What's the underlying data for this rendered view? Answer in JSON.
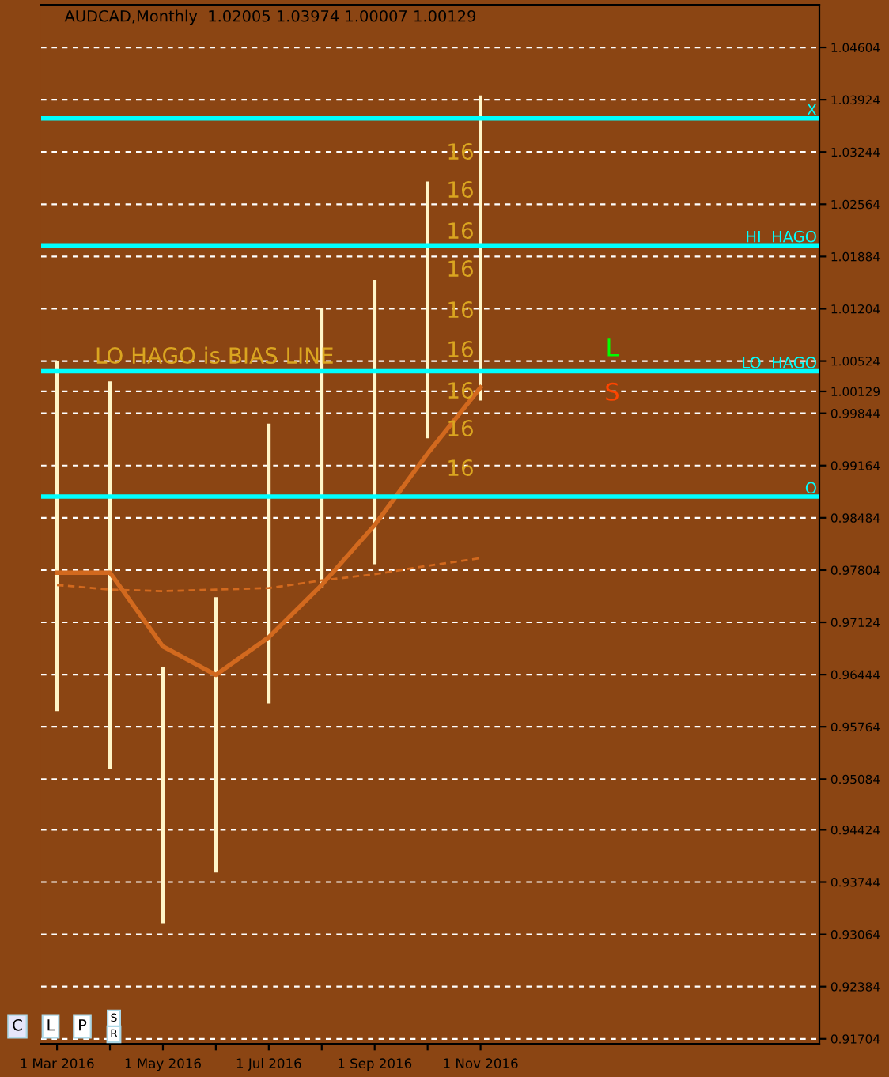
{
  "chart_data": {
    "type": "bar",
    "title": "AUDCAD,Monthly  1.02005 1.03974 1.00007 1.00129",
    "categories": [
      "1 Mar 2016",
      null,
      "1 May 2016",
      null,
      "1 Jul 2016",
      null,
      "1 Sep 2016",
      null,
      "1 Nov 2016"
    ],
    "series": [
      {
        "type": "bar",
        "color": "#fff5c8",
        "base": [
          0.9597,
          0.9522,
          0.9321,
          0.9387,
          0.9607,
          0.9757,
          0.9788,
          0.9952,
          1.0001
        ],
        "values": [
          0.0456,
          0.0504,
          0.0333,
          0.0358,
          0.0364,
          0.0364,
          0.037,
          0.0334,
          0.0397
        ]
      },
      {
        "type": "line",
        "color": "#d2691e",
        "line_style": "solid",
        "values": [
          0.9777,
          0.9777,
          0.9681,
          0.9644,
          0.9693,
          0.9761,
          0.9839,
          0.9932,
          1.0018
        ]
      },
      {
        "type": "line",
        "color": "#d2691e",
        "line_style": "dashed",
        "values": [
          0.9761,
          0.9755,
          0.9753,
          0.9755,
          0.9757,
          0.9767,
          0.9775,
          0.9786,
          0.9796
        ]
      }
    ],
    "ylim": [
      0.9164,
      1.0516
    ],
    "yticks": [
      1.04604,
      1.03924,
      1.03244,
      1.02564,
      1.01884,
      1.01204,
      1.00524,
      1.00129,
      0.99844,
      0.99164,
      0.98484,
      0.97804,
      0.97124,
      0.96444,
      0.95764,
      0.95084,
      0.94424,
      0.93744,
      0.93064,
      0.92384,
      0.91704
    ],
    "grid": "y",
    "ref_lines": [
      {
        "axis": "y",
        "value": 1.0368,
        "label": "X",
        "color": "#00ffff"
      },
      {
        "axis": "y",
        "value": 1.0203,
        "label": "HI  HAGO",
        "color": "#00ffff"
      },
      {
        "axis": "y",
        "value": 1.0039,
        "label": "LO  HAGO",
        "color": "#00ffff"
      },
      {
        "axis": "y",
        "value": 0.9876,
        "label": "O",
        "color": "#00ffff"
      }
    ],
    "annotations": [
      "LO HAGO is BIAS LINE",
      "16",
      "16",
      "16",
      "16",
      "16",
      "16",
      "16",
      "16",
      "16",
      "L",
      "S",
      "C",
      "L",
      "P",
      "S",
      "R"
    ]
  }
}
